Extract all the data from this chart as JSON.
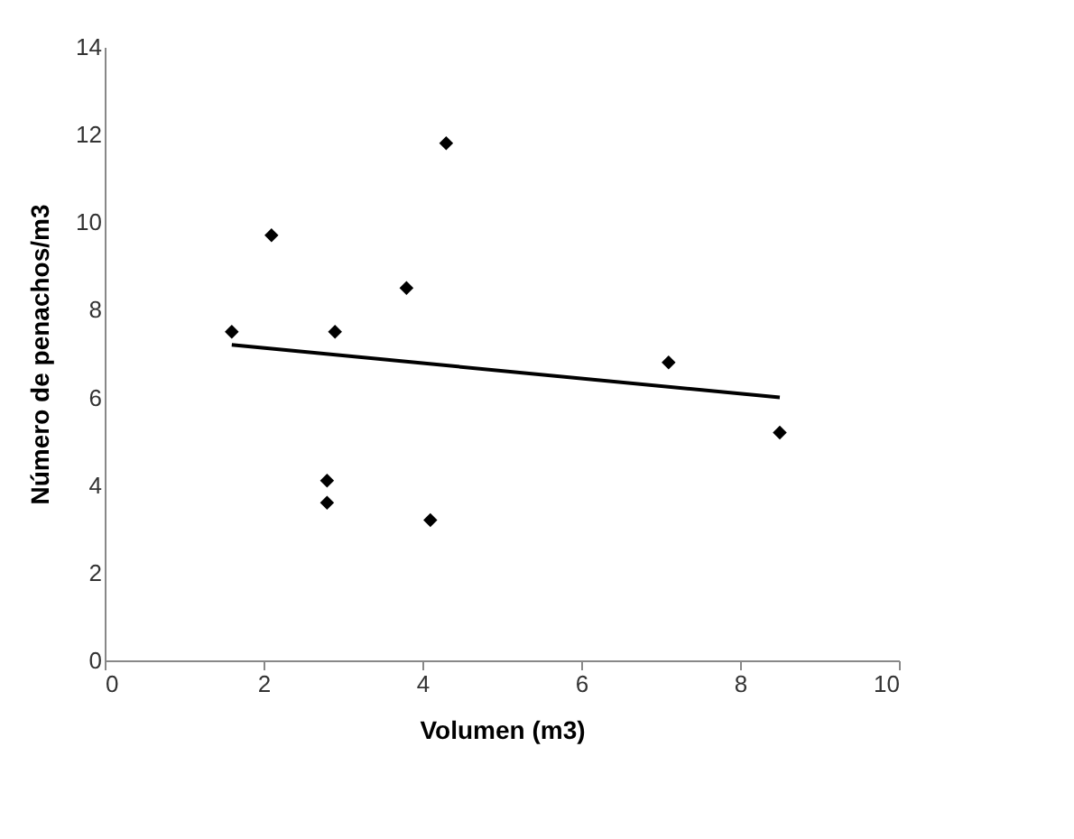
{
  "chart_data": {
    "type": "scatter",
    "xlabel": "Volumen (m3)",
    "ylabel": "Número de penachos/m3",
    "xlim": [
      0,
      10
    ],
    "xticks": [
      0,
      2,
      4,
      6,
      8,
      10
    ],
    "ylim": [
      0,
      14
    ],
    "yticks": [
      0,
      2,
      4,
      6,
      8,
      10,
      12,
      14
    ],
    "grid": false,
    "marker": "diamond",
    "series": [
      {
        "color": "#000000",
        "x": [
          1.6,
          2.1,
          2.8,
          2.8,
          2.9,
          3.8,
          4.1,
          4.3,
          7.1,
          8.5
        ],
        "values": [
          7.5,
          9.7,
          4.1,
          3.6,
          7.5,
          8.5,
          3.2,
          11.8,
          6.8,
          5.2
        ]
      },
      {
        "type": "line",
        "color": "#000000",
        "line_style": "solid",
        "marker": "none",
        "x": [
          1.6,
          8.5
        ],
        "values": [
          7.2,
          6.0
        ]
      }
    ]
  }
}
